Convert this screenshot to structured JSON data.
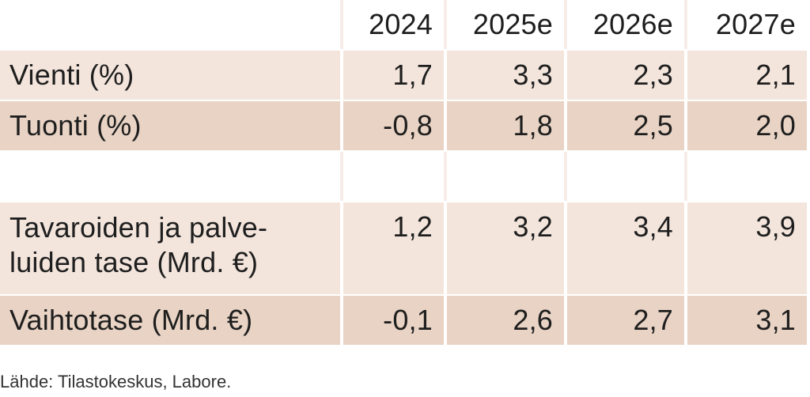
{
  "colors": {
    "row_light": "#f3e5dc",
    "row_dark": "#e8d3c4",
    "divider": "#f6ede8"
  },
  "header": [
    "2024",
    "2025e",
    "2026e",
    "2027e"
  ],
  "rows": [
    {
      "label": "Vienti (%)",
      "values": [
        "1,7",
        "3,3",
        "2,3",
        "2,1"
      ]
    },
    {
      "label": "Tuonti (%)",
      "values": [
        "-0,8",
        "1,8",
        "2,5",
        "2,0"
      ]
    },
    {
      "label": "Tavaroiden ja palve-\nluiden tase (Mrd. €)",
      "values": [
        "1,2",
        "3,2",
        "3,4",
        "3,9"
      ]
    },
    {
      "label": "Vaihtotase (Mrd. €)",
      "values": [
        "-0,1",
        "2,6",
        "2,7",
        "3,1"
      ]
    }
  ],
  "source": "Lähde: Tilastokeskus, Labore."
}
